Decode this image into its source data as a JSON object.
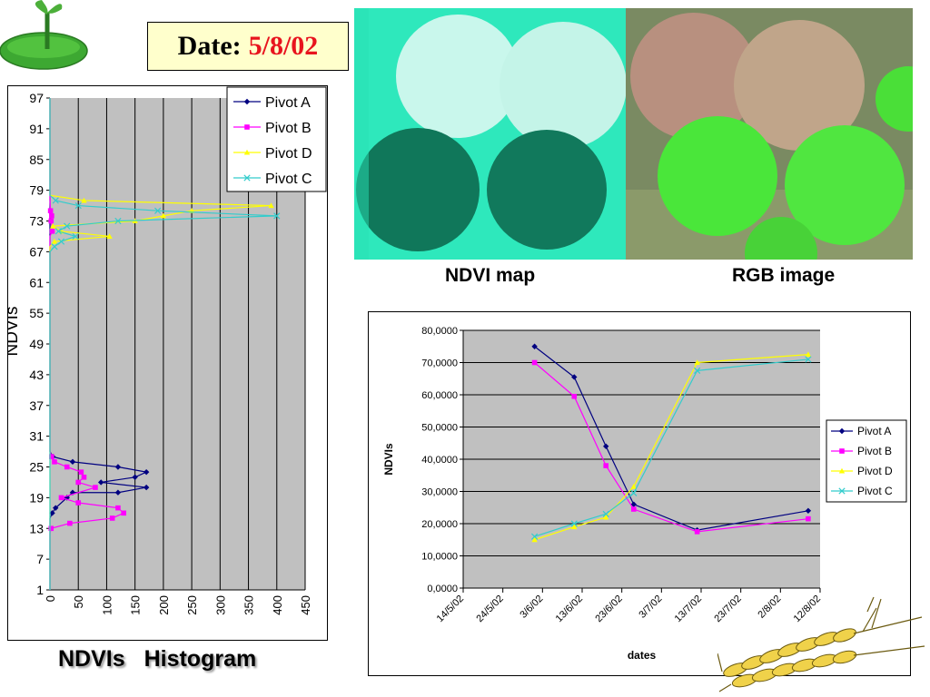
{
  "date_label": "Date:",
  "date_value": "5/8/02",
  "image_captions": {
    "ndvi": "NDVI map",
    "rgb": "RGB image"
  },
  "histogram_title": "NDVIs   Histogram",
  "colors": {
    "pivot_a": "#000080",
    "pivot_b": "#ff00ff",
    "pivot_d": "#ffff00",
    "pivot_c": "#33cccc",
    "plot_bg": "#c0c0c0",
    "date_value": "#e8141e"
  },
  "chart_data": [
    {
      "type": "line",
      "orientation": "horizontal",
      "ylabel": "NDVIs",
      "xlim": [
        0,
        450
      ],
      "xticks": [
        "0",
        "50",
        "100",
        "150",
        "200",
        "250",
        "300",
        "350",
        "400",
        "450"
      ],
      "ylim": [
        1,
        97
      ],
      "yticks": [
        "1",
        "7",
        "13",
        "19",
        "25",
        "31",
        "37",
        "43",
        "49",
        "55",
        "61",
        "67",
        "73",
        "79",
        "85",
        "91",
        "97"
      ],
      "legend": [
        "Pivot A",
        "Pivot B",
        "Pivot D",
        "Pivot C"
      ],
      "legend_position": "top-right",
      "series": [
        {
          "name": "Pivot A",
          "marker": "diamond",
          "points": [
            [
              0,
              1
            ],
            [
              0,
              15
            ],
            [
              4,
              16
            ],
            [
              10,
              17
            ],
            [
              30,
              19
            ],
            [
              40,
              20
            ],
            [
              120,
              20
            ],
            [
              170,
              21
            ],
            [
              90,
              22
            ],
            [
              150,
              23
            ],
            [
              170,
              24
            ],
            [
              120,
              25
            ],
            [
              40,
              26
            ],
            [
              5,
              27
            ],
            [
              0,
              28
            ],
            [
              0,
              97
            ]
          ]
        },
        {
          "name": "Pivot B",
          "marker": "square",
          "points": [
            [
              0,
              1
            ],
            [
              0,
              12
            ],
            [
              2,
              13
            ],
            [
              35,
              14
            ],
            [
              110,
              15
            ],
            [
              130,
              16
            ],
            [
              120,
              17
            ],
            [
              50,
              18
            ],
            [
              20,
              19
            ],
            [
              80,
              21
            ],
            [
              50,
              22
            ],
            [
              60,
              23
            ],
            [
              55,
              24
            ],
            [
              30,
              25
            ],
            [
              8,
              26
            ],
            [
              3,
              27
            ],
            [
              0,
              28
            ],
            [
              0,
              70
            ],
            [
              4,
              71
            ],
            [
              2,
              73
            ],
            [
              3,
              74
            ],
            [
              1,
              75
            ],
            [
              0,
              77
            ],
            [
              0,
              97
            ]
          ]
        },
        {
          "name": "Pivot D",
          "marker": "triangle",
          "points": [
            [
              0,
              1
            ],
            [
              0,
              68
            ],
            [
              8,
              69
            ],
            [
              105,
              70
            ],
            [
              20,
              71
            ],
            [
              5,
              72
            ],
            [
              150,
              73
            ],
            [
              200,
              74
            ],
            [
              250,
              75
            ],
            [
              390,
              76
            ],
            [
              60,
              77
            ],
            [
              0,
              78
            ],
            [
              0,
              97
            ]
          ]
        },
        {
          "name": "Pivot C",
          "marker": "x",
          "points": [
            [
              0,
              1
            ],
            [
              0,
              67
            ],
            [
              8,
              68
            ],
            [
              20,
              69
            ],
            [
              45,
              70
            ],
            [
              15,
              71
            ],
            [
              30,
              72
            ],
            [
              120,
              73
            ],
            [
              400,
              74
            ],
            [
              190,
              75
            ],
            [
              50,
              76
            ],
            [
              10,
              77
            ],
            [
              0,
              78
            ],
            [
              0,
              97
            ]
          ]
        }
      ]
    },
    {
      "type": "line",
      "xlabel": "dates",
      "ylabel": "NDVIs",
      "ylim": [
        0,
        80
      ],
      "yticks": [
        "0,0000",
        "10,0000",
        "20,0000",
        "30,0000",
        "40,0000",
        "50,0000",
        "60,0000",
        "70,0000",
        "80,0000"
      ],
      "xticks": [
        "14/5/02",
        "24/5/02",
        "3/6/02",
        "13/6/02",
        "23/6/02",
        "3/7/02",
        "13/7/02",
        "23/7/02",
        "2/8/02",
        "12/8/02"
      ],
      "xlim": [
        "14/5/02",
        "12/8/02"
      ],
      "legend": [
        "Pivot A",
        "Pivot B",
        "Pivot D",
        "Pivot C"
      ],
      "legend_position": "right",
      "series": [
        {
          "name": "Pivot A",
          "marker": "diamond",
          "points": [
            [
              "1/6/02",
              75
            ],
            [
              "11/6/02",
              65.5
            ],
            [
              "19/6/02",
              44
            ],
            [
              "26/6/02",
              26
            ],
            [
              "12/7/02",
              18
            ],
            [
              "9/8/02",
              24
            ]
          ]
        },
        {
          "name": "Pivot B",
          "marker": "square",
          "points": [
            [
              "1/6/02",
              70
            ],
            [
              "11/6/02",
              59.5
            ],
            [
              "19/6/02",
              38
            ],
            [
              "26/6/02",
              24.5
            ],
            [
              "12/7/02",
              17.5
            ],
            [
              "9/8/02",
              21.5
            ]
          ]
        },
        {
          "name": "Pivot D",
          "marker": "triangle",
          "points": [
            [
              "1/6/02",
              15
            ],
            [
              "11/6/02",
              19
            ],
            [
              "19/6/02",
              22
            ],
            [
              "26/6/02",
              31.5
            ],
            [
              "12/7/02",
              70
            ],
            [
              "9/8/02",
              72.5
            ]
          ]
        },
        {
          "name": "Pivot C",
          "marker": "x",
          "points": [
            [
              "1/6/02",
              16
            ],
            [
              "11/6/02",
              20
            ],
            [
              "19/6/02",
              23
            ],
            [
              "26/6/02",
              29.5
            ],
            [
              "12/7/02",
              67.5
            ],
            [
              "9/8/02",
              71
            ]
          ]
        }
      ]
    }
  ]
}
